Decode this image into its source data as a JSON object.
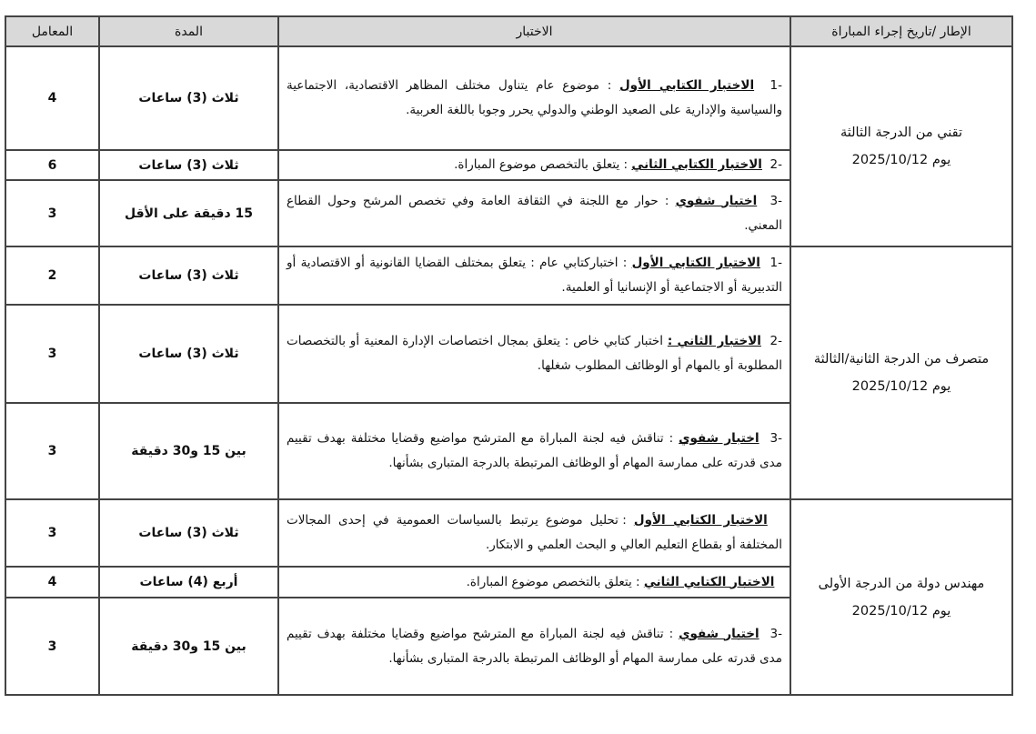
{
  "headers": {
    "frame": "الإطار /تاريخ إجراء المباراة",
    "exam": "الاختبار",
    "duration": "المدة",
    "coefficient": "المعامل"
  },
  "groups": [
    {
      "frame_title": "تقني من الدرجة الثالثة",
      "frame_date": "يوم 2025/10/12",
      "rows": [
        {
          "num": "-1",
          "title": "الاختبار الكتابي الأول",
          "text": ": موضوع عام يتناول مختلف المظاهر الاقتصادية، الاجتماعية والسياسية والإدارية على الصعيد الوطني والدولي يحرر وجوبا باللغة العربية.",
          "duration": "ثلاث (3) ساعات",
          "coefficient": "4"
        },
        {
          "num": "-2",
          "title": "الاختبار الكتابي الثاني",
          "text": ": يتعلق بالتخصص موضوع المباراة.",
          "duration": "ثلاث (3) ساعات",
          "coefficient": "6"
        },
        {
          "num": "-3",
          "title": "اختبار شفوي",
          "text": ": حوار مع اللجنة في الثقافة العامة وفي تخصص المرشح وحول القطاع المعني.",
          "duration": "15 دقيقة على الأقل",
          "coefficient": "3"
        }
      ]
    },
    {
      "frame_title": "متصرف من الدرجة الثانية/الثالثة",
      "frame_date": "يوم 2025/10/12",
      "rows": [
        {
          "num": "-1",
          "title": "الاختبار الكتابي الأول",
          "text": ": اختباركتابي عام : يتعلق بمختلف القضايا القانونية أو الاقتصادية أو التدبيرية أو الاجتماعية أو الإنسانيا أو العلمية.",
          "duration": "ثلاث (3) ساعات",
          "coefficient": "2"
        },
        {
          "num": "-2",
          "title": "الاختبار الثاني :",
          "text": "اختبار كتابي خاص : يتعلق بمجال اختصاصات الإدارة المعنية أو بالتخصصات المطلوبة أو بالمهام أو الوظائف المطلوب شغلها.",
          "duration": "ثلاث (3) ساعات",
          "coefficient": "3"
        },
        {
          "num": "-3",
          "title": "اختبار شفوي",
          "text": ": تناقش فيه لجنة المباراة مع المترشح مواضيع وقضايا مختلفة بهدف تقييم مدى قدرته على ممارسة المهام أو الوظائف المرتبطة بالدرجة المتبارى بشأنها.",
          "duration": "بين 15 و30 دقيقة",
          "coefficient": "3"
        }
      ]
    },
    {
      "frame_title": "مهندس دولة من الدرجة الأولى",
      "frame_date": "يوم 2025/10/12",
      "rows": [
        {
          "num": "",
          "title": "الاختبار الكتابي الأول",
          "text": ": تحليل موضوع يرتبط بالسياسات العمومية في إحدى المجالات المختلفة أو بقطاع التعليم العالي و البحث العلمي و الابتكار.",
          "duration": "ثلاث (3) ساعات",
          "coefficient": "3"
        },
        {
          "num": "",
          "title": "الاختبار الكتابي الثاني",
          "text": ": يتعلق بالتخصص موضوع المباراة.",
          "duration": "أربع (4) ساعات",
          "coefficient": "4"
        },
        {
          "num": "-3",
          "title": "اختبار شفوي",
          "text": ": تناقش فيه لجنة المباراة مع المترشح مواضيع وقضايا مختلفة بهدف تقييم مدى قدرته على ممارسة المهام أو الوظائف المرتبطة بالدرجة المتبارى بشأنها.",
          "duration": "بين 15 و30 دقيقة",
          "coefficient": "3"
        }
      ]
    }
  ]
}
